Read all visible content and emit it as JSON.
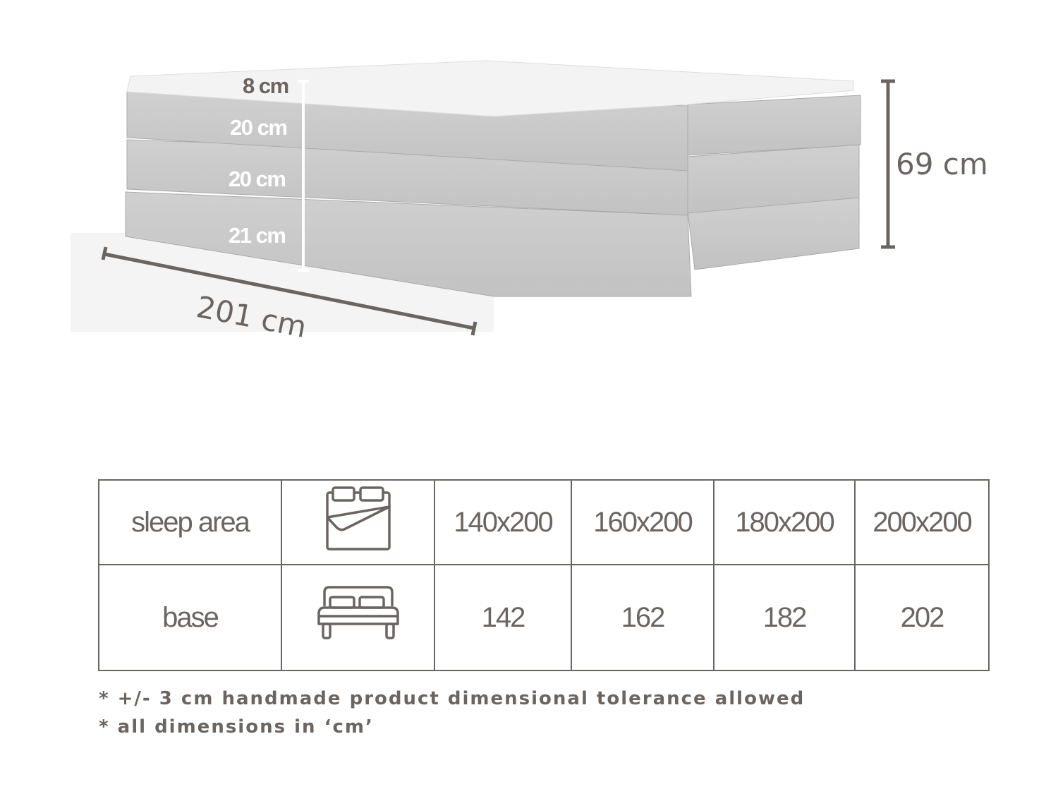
{
  "dimensions": {
    "topper_height": "8 cm",
    "layer_top_height": "20 cm",
    "layer_middle_height": "20 cm",
    "base_height": "21 cm",
    "total_height": "69 cm",
    "length": "201 cm"
  },
  "table": {
    "rows": [
      {
        "label": "sleep area",
        "icon": "mattress-icon",
        "values": [
          "140x200",
          "160x200",
          "180x200",
          "200x200"
        ]
      },
      {
        "label": "base",
        "icon": "bed-icon",
        "values": [
          "142",
          "162",
          "182",
          "202"
        ]
      }
    ]
  },
  "notes": [
    "* +/- 3 cm handmade product dimensional tolerance allowed",
    "* all dimensions in ‘cm’"
  ],
  "colors": {
    "text": "#6b6562",
    "fabric": "#c9c9c9",
    "topper": "#f3f3f3"
  }
}
